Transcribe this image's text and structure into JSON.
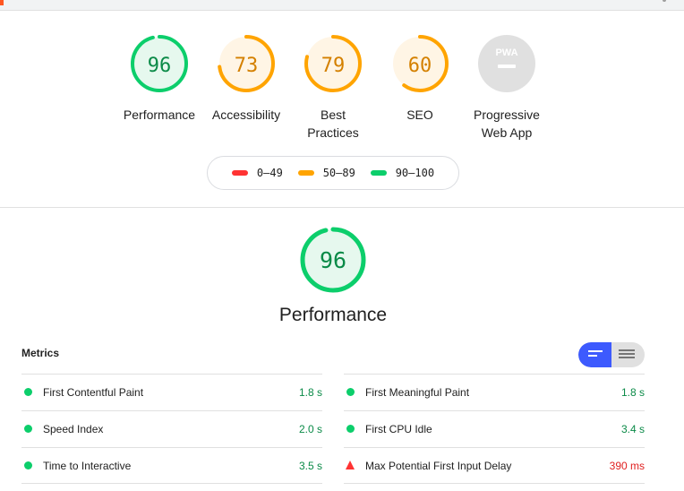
{
  "categories": [
    {
      "key": "performance",
      "label": "Performance",
      "score": "96",
      "color": "#0cce6b",
      "bg": "#e6f8ee",
      "fill": 0.96
    },
    {
      "key": "accessibility",
      "label": "Accessibility",
      "score": "73",
      "color": "#ffa400",
      "bg": "#fff5e5",
      "fill": 0.73
    },
    {
      "key": "best-practices",
      "label": "Best Practices",
      "score": "79",
      "color": "#ffa400",
      "bg": "#fff5e5",
      "fill": 0.79
    },
    {
      "key": "seo",
      "label": "SEO",
      "score": "60",
      "color": "#ffa400",
      "bg": "#fff5e5",
      "fill": 0.6
    },
    {
      "key": "pwa",
      "label": "Progressive Web App",
      "badge": "PWA",
      "color": "#bdbdbd",
      "bg": "#e0e0e0"
    }
  ],
  "legend": [
    {
      "range": "0–49",
      "color": "#ff3333"
    },
    {
      "range": "50–89",
      "color": "#ffa400"
    },
    {
      "range": "90–100",
      "color": "#0cce6b"
    }
  ],
  "performance": {
    "title": "Performance",
    "score": "96",
    "color": "#0cce6b",
    "fill": 0.96
  },
  "metrics": {
    "title": "Metrics",
    "left": [
      {
        "label": "First Contentful Paint",
        "value": "1.8 s",
        "status": "pass"
      },
      {
        "label": "Speed Index",
        "value": "2.0 s",
        "status": "pass"
      },
      {
        "label": "Time to Interactive",
        "value": "3.5 s",
        "status": "pass"
      }
    ],
    "right": [
      {
        "label": "First Meaningful Paint",
        "value": "1.8 s",
        "status": "pass"
      },
      {
        "label": "First CPU Idle",
        "value": "3.4 s",
        "status": "pass"
      },
      {
        "label": "Max Potential First Input Delay",
        "value": "390 ms",
        "status": "fail"
      }
    ]
  }
}
